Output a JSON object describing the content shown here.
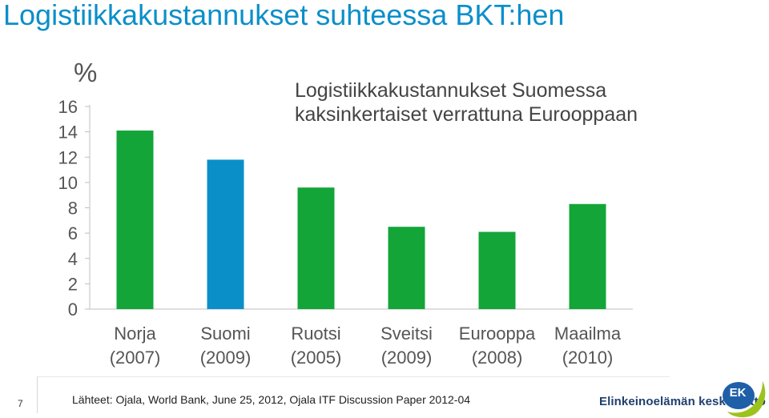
{
  "title": "Logistiikkakustannukset suhteessa BKT:hen",
  "chart_data": {
    "type": "bar",
    "unit": "%",
    "annotation": [
      "Logistiikkakustannukset Suomessa",
      "kaksinkertaiset verrattuna Eurooppaan"
    ],
    "categories": [
      {
        "name": "Norja",
        "year": "(2007)"
      },
      {
        "name": "Suomi",
        "year": "(2009)"
      },
      {
        "name": "Ruotsi",
        "year": "(2005)"
      },
      {
        "name": "Sveitsi",
        "year": "(2009)"
      },
      {
        "name": "Eurooppa",
        "year": "(2008)"
      },
      {
        "name": "Maailma",
        "year": "(2010)"
      }
    ],
    "values": [
      14.1,
      11.8,
      9.6,
      6.5,
      6.1,
      8.3
    ],
    "yticks": [
      0,
      2,
      4,
      6,
      8,
      10,
      12,
      14,
      16
    ],
    "ylim": [
      0,
      16
    ],
    "grid": false,
    "colors": [
      "#13a538",
      "#0b8fc9",
      "#13a538",
      "#13a538",
      "#13a538",
      "#13a538"
    ]
  },
  "footer": {
    "page_number": "7",
    "source": "Lähteet: Ojala, World Bank, June 25, 2012, Ojala ITF Discussion Paper 2012-04",
    "organization": "Elinkeinoelämän keskusliitto",
    "logo_text": "EK"
  }
}
